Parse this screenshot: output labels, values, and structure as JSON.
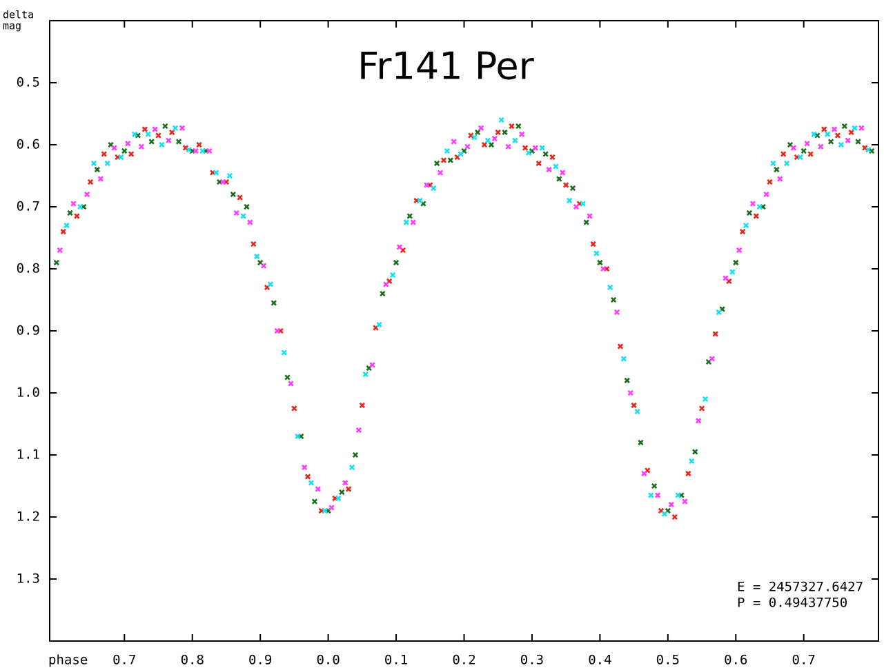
{
  "chart_data": {
    "type": "scatter",
    "title": "Fr141 Per",
    "ylabel": [
      "delta",
      "mag"
    ],
    "xlabel": "phase",
    "annotations": [
      "E = 2457327.6427",
      "P = 0.49437750"
    ],
    "xlim": [
      -0.41,
      0.81
    ],
    "ylim": [
      0.4,
      1.4
    ],
    "y_inverted": true,
    "grid": false,
    "xticks": [
      {
        "value": -0.3,
        "label": "0.7"
      },
      {
        "value": -0.2,
        "label": "0.8"
      },
      {
        "value": -0.1,
        "label": "0.9"
      },
      {
        "value": 0,
        "label": "0.0"
      },
      0.1,
      0.2,
      0.3,
      0.4,
      0.5,
      0.6,
      0.7
    ],
    "yticks": [
      0.5,
      0.6,
      0.7,
      0.8,
      0.9,
      {
        "value": 1,
        "label": "1.0"
      },
      1.1,
      1.2,
      1.3
    ],
    "series": [
      {
        "color": "#1b6e1b",
        "x": [
          -0.4,
          -0.38,
          -0.36,
          -0.34,
          -0.32,
          -0.3,
          -0.28,
          -0.26,
          -0.24,
          -0.22,
          -0.2,
          -0.18,
          -0.16,
          -0.14,
          -0.12,
          -0.1,
          -0.08,
          -0.06,
          -0.04,
          -0.02,
          0,
          0.02,
          0.04,
          0.06,
          0.08,
          0.1,
          0.12,
          0.14,
          0.16,
          0.18,
          0.2,
          0.22,
          0.24,
          0.26,
          0.28,
          0.3,
          0.32,
          0.34,
          0.36,
          0.38,
          0.4,
          0.42,
          0.44,
          0.46,
          0.48,
          0.5,
          0.52,
          0.54,
          0.56,
          0.58,
          0.6,
          0.62,
          0.64,
          0.66,
          0.68,
          0.7,
          0.72,
          0.74,
          0.76,
          0.78,
          0.8
        ],
        "values": [
          0.79,
          0.71,
          0.7,
          0.64,
          0.6,
          0.61,
          0.585,
          0.595,
          0.57,
          0.595,
          0.61,
          0.61,
          0.66,
          0.68,
          0.7,
          0.79,
          0.855,
          0.975,
          1.07,
          1.175,
          1.19,
          1.16,
          1.1,
          0.96,
          0.84,
          0.79,
          0.715,
          0.695,
          0.63,
          0.625,
          0.61,
          0.58,
          0.6,
          0.58,
          0.57,
          0.61,
          0.615,
          0.655,
          0.67,
          0.725,
          0.79,
          0.85,
          0.98,
          1.08,
          1.15,
          1.19,
          1.165,
          1.095,
          0.95,
          0.865,
          0.79,
          0.71,
          0.7,
          0.64,
          0.6,
          0.61,
          0.585,
          0.595,
          0.57,
          0.595,
          0.61
        ]
      },
      {
        "color": "#e8261a",
        "x": [
          -0.39,
          -0.37,
          -0.35,
          -0.33,
          -0.31,
          -0.29,
          -0.27,
          -0.25,
          -0.23,
          -0.21,
          -0.19,
          -0.17,
          -0.15,
          -0.13,
          -0.11,
          -0.09,
          -0.07,
          -0.05,
          -0.03,
          -0.01,
          0.01,
          0.03,
          0.05,
          0.07,
          0.09,
          0.11,
          0.13,
          0.15,
          0.17,
          0.19,
          0.21,
          0.23,
          0.25,
          0.27,
          0.29,
          0.31,
          0.33,
          0.35,
          0.37,
          0.39,
          0.41,
          0.43,
          0.45,
          0.47,
          0.49,
          0.51,
          0.53,
          0.55,
          0.57,
          0.59,
          0.61,
          0.63,
          0.65,
          0.67,
          0.69,
          0.71,
          0.73,
          0.75,
          0.77,
          0.79
        ],
        "values": [
          0.74,
          0.715,
          0.66,
          0.615,
          0.62,
          0.615,
          0.575,
          0.585,
          0.58,
          0.605,
          0.6,
          0.645,
          0.66,
          0.685,
          0.76,
          0.83,
          0.9,
          1.025,
          1.135,
          1.19,
          1.17,
          1.155,
          1.02,
          0.895,
          0.82,
          0.77,
          0.69,
          0.665,
          0.625,
          0.62,
          0.585,
          0.6,
          0.58,
          0.57,
          0.605,
          0.63,
          0.62,
          0.665,
          0.695,
          0.76,
          0.8,
          0.925,
          1.02,
          1.125,
          1.19,
          1.2,
          1.13,
          1.025,
          0.905,
          0.82,
          0.74,
          0.715,
          0.66,
          0.615,
          0.62,
          0.615,
          0.575,
          0.585,
          0.58,
          0.605
        ]
      },
      {
        "color": "#ff3cff",
        "x": [
          -0.395,
          -0.375,
          -0.355,
          -0.335,
          -0.315,
          -0.295,
          -0.275,
          -0.255,
          -0.235,
          -0.215,
          -0.195,
          -0.175,
          -0.155,
          -0.135,
          -0.115,
          -0.095,
          -0.075,
          -0.055,
          -0.035,
          -0.015,
          0.005,
          0.025,
          0.045,
          0.065,
          0.085,
          0.105,
          0.125,
          0.145,
          0.165,
          0.185,
          0.205,
          0.225,
          0.245,
          0.265,
          0.285,
          0.305,
          0.325,
          0.345,
          0.365,
          0.385,
          0.405,
          0.425,
          0.445,
          0.465,
          0.485,
          0.505,
          0.525,
          0.545,
          0.565,
          0.585,
          0.605,
          0.625,
          0.645,
          0.665,
          0.685,
          0.705,
          0.725,
          0.745,
          0.765,
          0.785
        ],
        "values": [
          0.77,
          0.695,
          0.68,
          0.655,
          0.605,
          0.598,
          0.603,
          0.575,
          0.593,
          0.573,
          0.61,
          0.61,
          0.66,
          0.71,
          0.725,
          0.795,
          0.9,
          0.985,
          1.12,
          1.155,
          1.185,
          1.145,
          1.06,
          0.955,
          0.825,
          0.765,
          0.725,
          0.665,
          0.645,
          0.595,
          0.603,
          0.573,
          0.59,
          0.603,
          0.583,
          0.605,
          0.64,
          0.645,
          0.7,
          0.715,
          0.8,
          0.87,
          1.0,
          1.13,
          1.165,
          1.18,
          1.175,
          1.045,
          0.945,
          0.815,
          0.77,
          0.695,
          0.68,
          0.655,
          0.605,
          0.598,
          0.603,
          0.575,
          0.593,
          0.573
        ]
      },
      {
        "color": "#19e0f0",
        "x": [
          -0.385,
          -0.365,
          -0.345,
          -0.325,
          -0.305,
          -0.285,
          -0.265,
          -0.245,
          -0.225,
          -0.205,
          -0.185,
          -0.165,
          -0.145,
          -0.125,
          -0.105,
          -0.085,
          -0.065,
          -0.045,
          -0.025,
          -0.005,
          0.015,
          0.035,
          0.055,
          0.075,
          0.095,
          0.115,
          0.135,
          0.155,
          0.175,
          0.195,
          0.215,
          0.235,
          0.255,
          0.275,
          0.295,
          0.315,
          0.335,
          0.355,
          0.375,
          0.395,
          0.415,
          0.435,
          0.455,
          0.475,
          0.495,
          0.515,
          0.535,
          0.555,
          0.575,
          0.595,
          0.615,
          0.635,
          0.655,
          0.675,
          0.695,
          0.715,
          0.735,
          0.755,
          0.775,
          0.795
        ],
        "values": [
          0.73,
          0.7,
          0.63,
          0.63,
          0.62,
          0.583,
          0.583,
          0.6,
          0.573,
          0.608,
          0.61,
          0.645,
          0.65,
          0.715,
          0.78,
          0.825,
          0.935,
          1.07,
          1.145,
          1.19,
          1.17,
          1.12,
          0.97,
          0.89,
          0.81,
          0.725,
          0.69,
          0.67,
          0.61,
          0.615,
          0.588,
          0.593,
          0.56,
          0.593,
          0.613,
          0.605,
          0.635,
          0.69,
          0.695,
          0.775,
          0.83,
          0.945,
          1.03,
          1.165,
          1.195,
          1.165,
          1.11,
          1.01,
          0.87,
          0.805,
          0.73,
          0.7,
          0.63,
          0.63,
          0.62,
          0.583,
          0.583,
          0.6,
          0.573,
          0.608
        ]
      }
    ]
  }
}
